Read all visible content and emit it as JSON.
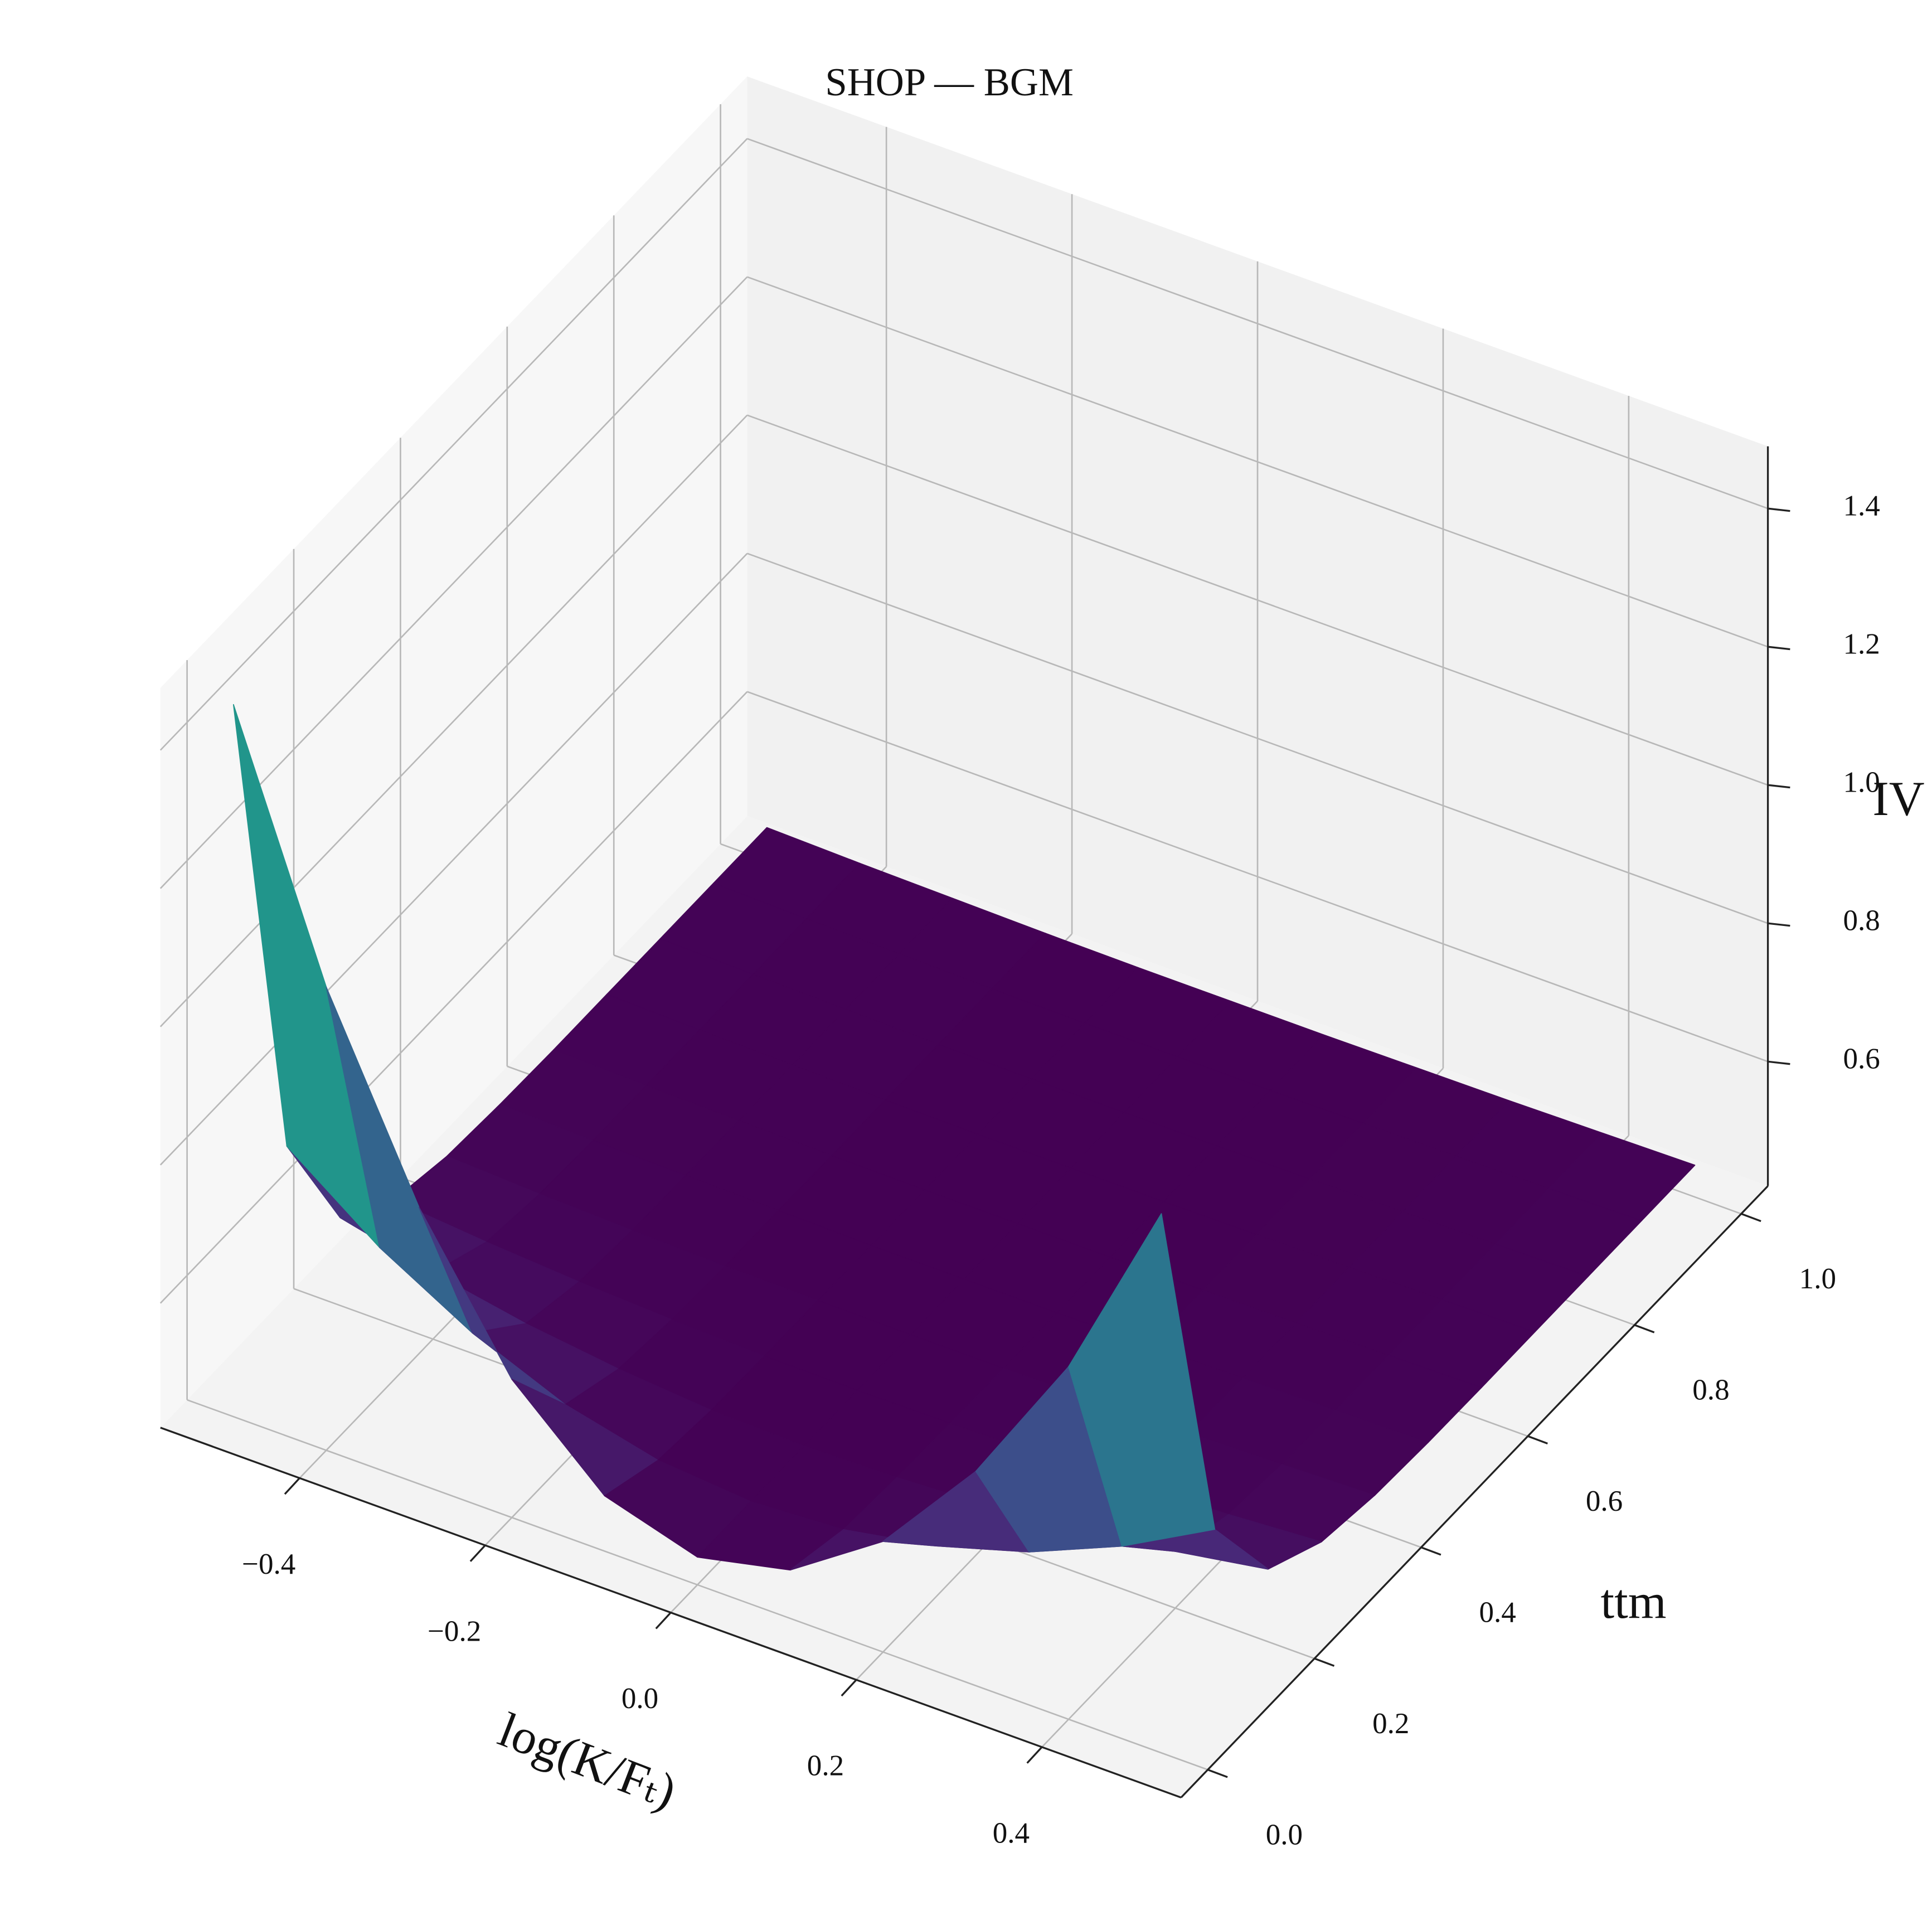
{
  "chart_data": {
    "type": "surface",
    "title": "SHOP — BGM",
    "xlabel": "log(K/Fₜ)",
    "ylabel": "ttm",
    "zlabel": "IV",
    "colormap": "viridis",
    "xlim": [
      -0.55,
      0.55
    ],
    "ylim": [
      -0.05,
      1.05
    ],
    "zlim": [
      0.42,
      1.49
    ],
    "xticks": [
      {
        "value": -0.4,
        "label": "−0.4"
      },
      {
        "value": -0.2,
        "label": "−0.2"
      },
      {
        "value": 0,
        "label": "0.0"
      },
      0.2,
      0.4
    ],
    "yticks": [
      {
        "value": 0,
        "label": "0.0"
      },
      0.2,
      0.4,
      0.6,
      0.8,
      {
        "value": 1,
        "label": "1.0"
      }
    ],
    "zticks": [
      0.6,
      0.8,
      {
        "value": 1,
        "label": "1.0"
      },
      1.2,
      1.4
    ],
    "grid": true,
    "x": [
      -0.5,
      -0.4,
      -0.3,
      -0.2,
      -0.1,
      0,
      0.1,
      0.2,
      0.3,
      0.4,
      0.5
    ],
    "y": [
      0,
      0.1,
      0.2,
      0.3,
      0.4,
      0.5,
      0.6,
      0.7,
      0.8,
      0.9,
      1.0
    ],
    "z": [
      [
        1.45,
        1.09,
        0.82,
        0.62,
        0.5,
        0.46,
        0.49,
        0.58,
        0.73,
        0.93,
        1.2
      ],
      [
        0.731,
        0.633,
        0.558,
        0.503,
        0.471,
        0.46,
        0.468,
        0.493,
        0.533,
        0.59,
        0.663
      ],
      [
        0.547,
        0.516,
        0.491,
        0.474,
        0.463,
        0.46,
        0.463,
        0.47,
        0.483,
        0.502,
        0.525
      ],
      [
        0.492,
        0.48,
        0.471,
        0.465,
        0.461,
        0.46,
        0.461,
        0.464,
        0.469,
        0.475,
        0.484
      ],
      [
        0.475,
        0.469,
        0.465,
        0.462,
        0.461,
        0.46,
        0.46,
        0.462,
        0.464,
        0.467,
        0.471
      ],
      [
        0.47,
        0.466,
        0.464,
        0.462,
        0.46,
        0.46,
        0.46,
        0.461,
        0.463,
        0.465,
        0.467
      ],
      [
        0.468,
        0.465,
        0.463,
        0.461,
        0.46,
        0.46,
        0.46,
        0.461,
        0.462,
        0.464,
        0.466
      ],
      [
        0.468,
        0.465,
        0.463,
        0.461,
        0.46,
        0.46,
        0.46,
        0.461,
        0.462,
        0.464,
        0.466
      ],
      [
        0.468,
        0.465,
        0.463,
        0.461,
        0.46,
        0.46,
        0.46,
        0.461,
        0.462,
        0.464,
        0.466
      ],
      [
        0.468,
        0.465,
        0.463,
        0.461,
        0.46,
        0.46,
        0.46,
        0.461,
        0.462,
        0.464,
        0.466
      ],
      [
        0.468,
        0.465,
        0.463,
        0.461,
        0.46,
        0.46,
        0.46,
        0.461,
        0.462,
        0.464,
        0.466
      ]
    ]
  }
}
